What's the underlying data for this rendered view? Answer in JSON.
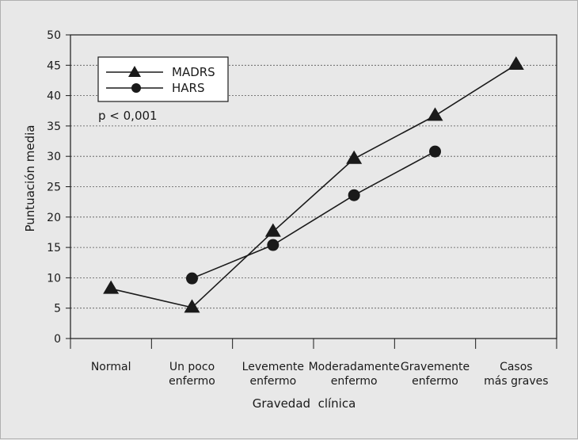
{
  "chart_data": {
    "type": "line",
    "categories": [
      [
        "Normal"
      ],
      [
        "Un poco",
        "enfermo"
      ],
      [
        "Levemente",
        "enfermo"
      ],
      [
        "Moderadamente",
        "enfermo"
      ],
      [
        "Gravemente",
        "enfermo"
      ],
      [
        "Casos",
        "más graves"
      ]
    ],
    "series": [
      {
        "name": "MADRS",
        "marker": "triangle",
        "values": [
          8.2,
          5.1,
          17.6,
          29.6,
          36.7,
          45.1
        ]
      },
      {
        "name": "HARS",
        "marker": "circle",
        "values": [
          null,
          9.9,
          15.4,
          23.6,
          30.8,
          null
        ]
      }
    ],
    "xlabel": "Gravedad  clínica",
    "ylabel": "Puntuación media",
    "ylim": [
      0,
      50
    ],
    "yticks": [
      0,
      5,
      10,
      15,
      20,
      25,
      30,
      35,
      40,
      45,
      50
    ],
    "grid": "horizontal-dashed",
    "legend": "top-left",
    "annotation": "p < 0,001",
    "colors": {
      "background": "#e8e8e8",
      "ink": "#1a1a1a",
      "grid": "#555555"
    }
  }
}
